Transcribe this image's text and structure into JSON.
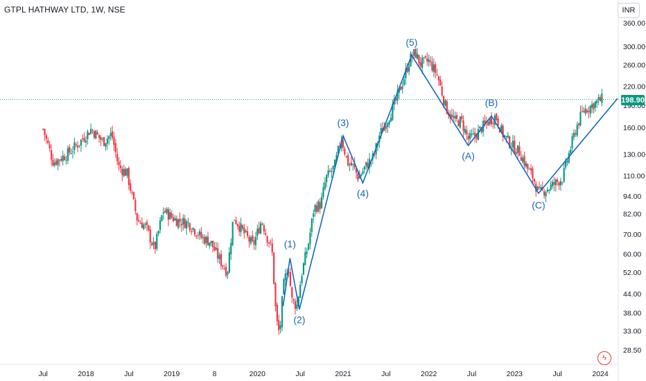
{
  "header": {
    "title": "GTPL HATHWAY LTD, 1W, NSE"
  },
  "currency": "INR",
  "last_price": "198.90",
  "colors": {
    "up": "#089981",
    "down": "#f23645",
    "wave": "#1565c0",
    "price_line": "#089981"
  },
  "icons": {
    "bottom_right": "lightning-icon"
  },
  "chart_data": {
    "type": "candlestick",
    "title": "GTPL HATHWAY LTD, 1W, NSE",
    "y_scale": "log",
    "y_ticks": [
      360,
      300,
      260,
      220,
      190,
      160,
      130,
      110,
      94,
      82,
      70,
      60,
      52,
      44,
      38,
      33,
      28.5
    ],
    "y_tick_labels": [
      "360.00",
      "300.00",
      "260.00",
      "220.00",
      "190.00",
      "160.00",
      "130.00",
      "110.00",
      "94.00",
      "82.00",
      "70.00",
      "60.00",
      "52.00",
      "44.00",
      "38.00",
      "33.00",
      "28.50"
    ],
    "x_ticks": [
      {
        "label": "Jul",
        "t": 2017.5
      },
      {
        "label": "2018",
        "t": 2018.0
      },
      {
        "label": "Jul",
        "t": 2018.5
      },
      {
        "label": "2019",
        "t": 2019.0
      },
      {
        "label": "8",
        "t": 2019.5
      },
      {
        "label": "2020",
        "t": 2020.0
      },
      {
        "label": "Jul",
        "t": 2020.5
      },
      {
        "label": "2021",
        "t": 2021.0
      },
      {
        "label": "Jul",
        "t": 2021.5
      },
      {
        "label": "2022",
        "t": 2022.0
      },
      {
        "label": "Jul",
        "t": 2022.5
      },
      {
        "label": "2023",
        "t": 2023.0
      },
      {
        "label": "Jul",
        "t": 2023.5
      },
      {
        "label": "2024",
        "t": 2024.0
      }
    ],
    "price_path": [
      {
        "t": 2017.5,
        "p": 158
      },
      {
        "t": 2017.62,
        "p": 122
      },
      {
        "t": 2017.78,
        "p": 130
      },
      {
        "t": 2017.92,
        "p": 142
      },
      {
        "t": 2018.06,
        "p": 158
      },
      {
        "t": 2018.2,
        "p": 143
      },
      {
        "t": 2018.3,
        "p": 152
      },
      {
        "t": 2018.38,
        "p": 118
      },
      {
        "t": 2018.48,
        "p": 112
      },
      {
        "t": 2018.6,
        "p": 78
      },
      {
        "t": 2018.7,
        "p": 74
      },
      {
        "t": 2018.8,
        "p": 62
      },
      {
        "t": 2018.9,
        "p": 84
      },
      {
        "t": 2019.05,
        "p": 78
      },
      {
        "t": 2019.2,
        "p": 76
      },
      {
        "t": 2019.35,
        "p": 68
      },
      {
        "t": 2019.45,
        "p": 66
      },
      {
        "t": 2019.55,
        "p": 58
      },
      {
        "t": 2019.65,
        "p": 52
      },
      {
        "t": 2019.72,
        "p": 80
      },
      {
        "t": 2019.85,
        "p": 70
      },
      {
        "t": 2019.95,
        "p": 64
      },
      {
        "t": 2020.05,
        "p": 78
      },
      {
        "t": 2020.1,
        "p": 70
      },
      {
        "t": 2020.17,
        "p": 62
      },
      {
        "t": 2020.22,
        "p": 36
      },
      {
        "t": 2020.26,
        "p": 32
      },
      {
        "t": 2020.3,
        "p": 46
      },
      {
        "t": 2020.36,
        "p": 56
      },
      {
        "t": 2020.4,
        "p": 42
      },
      {
        "t": 2020.46,
        "p": 40
      },
      {
        "t": 2020.52,
        "p": 52
      },
      {
        "t": 2020.6,
        "p": 66
      },
      {
        "t": 2020.66,
        "p": 86
      },
      {
        "t": 2020.74,
        "p": 88
      },
      {
        "t": 2020.8,
        "p": 108
      },
      {
        "t": 2020.9,
        "p": 118
      },
      {
        "t": 2020.98,
        "p": 148
      },
      {
        "t": 2021.05,
        "p": 122
      },
      {
        "t": 2021.12,
        "p": 118
      },
      {
        "t": 2021.18,
        "p": 108
      },
      {
        "t": 2021.26,
        "p": 118
      },
      {
        "t": 2021.36,
        "p": 128
      },
      {
        "t": 2021.42,
        "p": 150
      },
      {
        "t": 2021.52,
        "p": 170
      },
      {
        "t": 2021.62,
        "p": 198
      },
      {
        "t": 2021.7,
        "p": 230
      },
      {
        "t": 2021.78,
        "p": 272
      },
      {
        "t": 2021.84,
        "p": 286
      },
      {
        "t": 2021.9,
        "p": 262
      },
      {
        "t": 2022.0,
        "p": 268
      },
      {
        "t": 2022.1,
        "p": 240
      },
      {
        "t": 2022.2,
        "p": 186
      },
      {
        "t": 2022.3,
        "p": 168
      },
      {
        "t": 2022.38,
        "p": 168
      },
      {
        "t": 2022.46,
        "p": 146
      },
      {
        "t": 2022.54,
        "p": 150
      },
      {
        "t": 2022.62,
        "p": 160
      },
      {
        "t": 2022.7,
        "p": 168
      },
      {
        "t": 2022.78,
        "p": 175
      },
      {
        "t": 2022.86,
        "p": 152
      },
      {
        "t": 2022.96,
        "p": 140
      },
      {
        "t": 2023.06,
        "p": 132
      },
      {
        "t": 2023.14,
        "p": 118
      },
      {
        "t": 2023.22,
        "p": 108
      },
      {
        "t": 2023.28,
        "p": 96
      },
      {
        "t": 2023.34,
        "p": 98
      },
      {
        "t": 2023.4,
        "p": 100
      },
      {
        "t": 2023.48,
        "p": 104
      },
      {
        "t": 2023.56,
        "p": 108
      },
      {
        "t": 2023.64,
        "p": 132
      },
      {
        "t": 2023.72,
        "p": 160
      },
      {
        "t": 2023.8,
        "p": 182
      },
      {
        "t": 2023.88,
        "p": 188
      },
      {
        "t": 2023.96,
        "p": 195
      },
      {
        "t": 2024.02,
        "p": 198.9
      }
    ],
    "elliott_waves": [
      {
        "label": "(1)",
        "t": 2020.38,
        "p": 58
      },
      {
        "label": "(2)",
        "t": 2020.49,
        "p": 39
      },
      {
        "label": "(3)",
        "t": 2021.0,
        "p": 150
      },
      {
        "label": "(4)",
        "t": 2021.23,
        "p": 104
      },
      {
        "label": "(5)",
        "t": 2021.8,
        "p": 280
      },
      {
        "label": "(A)",
        "t": 2022.46,
        "p": 139
      },
      {
        "label": "(B)",
        "t": 2022.73,
        "p": 175
      },
      {
        "label": "(C)",
        "t": 2023.28,
        "p": 96
      }
    ],
    "wave_path": [
      {
        "t": 2020.3,
        "p": 40
      },
      {
        "t": 2020.38,
        "p": 58
      },
      {
        "t": 2020.49,
        "p": 39
      },
      {
        "t": 2021.0,
        "p": 150
      },
      {
        "t": 2021.23,
        "p": 104
      },
      {
        "t": 2021.8,
        "p": 280
      },
      {
        "t": 2022.46,
        "p": 139
      },
      {
        "t": 2022.73,
        "p": 175
      },
      {
        "t": 2023.28,
        "p": 96
      },
      {
        "t": 2024.2,
        "p": 200
      }
    ]
  }
}
